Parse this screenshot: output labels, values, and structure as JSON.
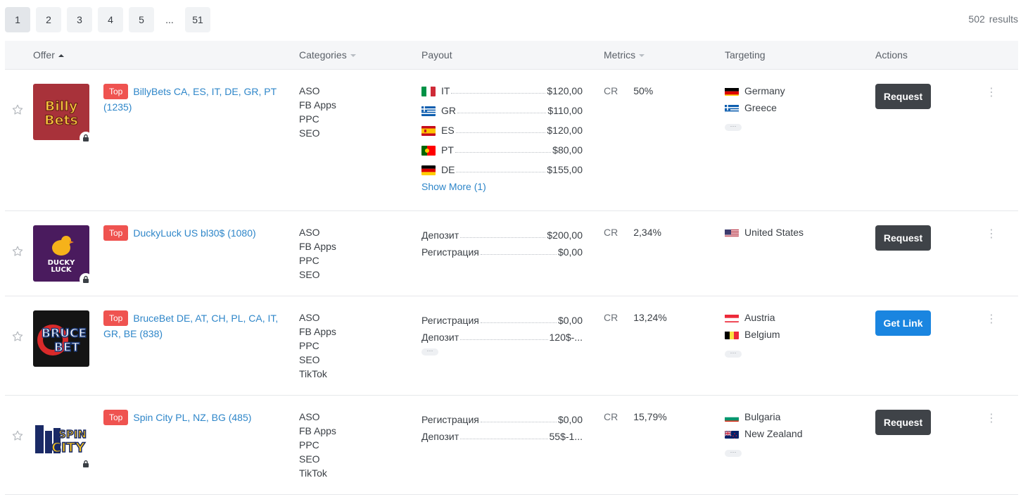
{
  "pagination": {
    "pages": [
      "1",
      "2",
      "3",
      "4",
      "5",
      "...",
      "51"
    ],
    "results_count": "502",
    "results_label": "results"
  },
  "table": {
    "headers": {
      "offer": "Offer",
      "categories": "Categories",
      "payout": "Payout",
      "metrics": "Metrics",
      "targeting": "Targeting",
      "actions": "Actions"
    },
    "rows": [
      {
        "badge": "Top",
        "title": "BillyBets CA, ES, IT, DE, GR, PT (1235)",
        "logo_icon": "billybets-logo",
        "locked": true,
        "categories": [
          "ASO",
          "FB Apps",
          "PPC",
          "SEO"
        ],
        "payout": [
          {
            "flag": "IT",
            "label": "IT",
            "value": "$120,00"
          },
          {
            "flag": "GR",
            "label": "GR",
            "value": "$110,00"
          },
          {
            "flag": "ES",
            "label": "ES",
            "value": "$120,00"
          },
          {
            "flag": "PT",
            "label": "PT",
            "value": "$80,00"
          },
          {
            "flag": "DE",
            "label": "DE",
            "value": "$155,00"
          }
        ],
        "show_more": "Show More (1)",
        "metric_key": "CR",
        "metric_value": "50%",
        "targeting": [
          {
            "flag": "DE",
            "name": "Germany"
          },
          {
            "flag": "GR",
            "name": "Greece"
          }
        ],
        "targeting_more": "···",
        "action": "Request",
        "action_style": "dark"
      },
      {
        "badge": "Top",
        "title": "DuckyLuck US bl30$ (1080)",
        "logo_icon": "duckyluck-logo",
        "locked": true,
        "categories": [
          "ASO",
          "FB Apps",
          "PPC",
          "SEO"
        ],
        "payout": [
          {
            "label": "Депозит",
            "value": "$200,00"
          },
          {
            "label": "Регистрация",
            "value": "$0,00"
          }
        ],
        "metric_key": "CR",
        "metric_value": "2,34%",
        "targeting": [
          {
            "flag": "US",
            "name": "United States"
          }
        ],
        "action": "Request",
        "action_style": "dark"
      },
      {
        "badge": "Top",
        "title": "BruceBet DE, AT, CH, PL, CA, IT, GR, BE (838)",
        "logo_icon": "brucebet-logo",
        "locked": false,
        "categories": [
          "ASO",
          "FB Apps",
          "PPC",
          "SEO",
          "TikTok"
        ],
        "payout": [
          {
            "label": "Регистрация",
            "value": "$0,00"
          },
          {
            "label": "Депозит",
            "value": "120$-..."
          }
        ],
        "payout_more": "···",
        "metric_key": "CR",
        "metric_value": "13,24%",
        "targeting": [
          {
            "flag": "AT",
            "name": "Austria"
          },
          {
            "flag": "BE",
            "name": "Belgium"
          }
        ],
        "targeting_more": "···",
        "action": "Get Link",
        "action_style": "blue"
      },
      {
        "badge": "Top",
        "title": "Spin City PL, NZ, BG (485)",
        "logo_icon": "spincity-logo",
        "locked": true,
        "categories": [
          "ASO",
          "FB Apps",
          "PPC",
          "SEO",
          "TikTok"
        ],
        "payout": [
          {
            "label": "Регистрация",
            "value": "$0,00"
          },
          {
            "label": "Депозит",
            "value": "55$-1..."
          }
        ],
        "metric_key": "CR",
        "metric_value": "15,79%",
        "targeting": [
          {
            "flag": "BG",
            "name": "Bulgaria"
          },
          {
            "flag": "NZ",
            "name": "New Zealand"
          }
        ],
        "targeting_more": "···",
        "action": "Request",
        "action_style": "dark"
      }
    ]
  },
  "colors": {
    "link": "#2e86c9",
    "badge": "#ef5350",
    "button_dark": "#3f4348",
    "button_blue": "#1a85e0"
  }
}
